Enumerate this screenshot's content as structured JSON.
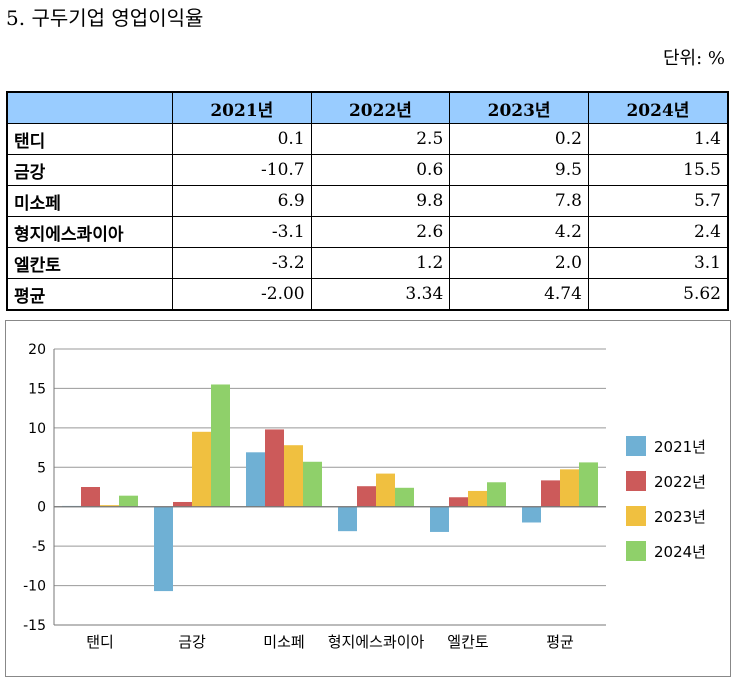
{
  "header": {
    "title": "5. 구두기업 영업이익율",
    "unit": "단위: %"
  },
  "table": {
    "columns": [
      "",
      "2021년",
      "2022년",
      "2023년",
      "2024년"
    ],
    "rows": [
      {
        "name": "탠디",
        "values": [
          "0.1",
          "2.5",
          "0.2",
          "1.4"
        ]
      },
      {
        "name": "금강",
        "values": [
          "-10.7",
          "0.6",
          "9.5",
          "15.5"
        ]
      },
      {
        "name": "미소페",
        "values": [
          "6.9",
          "9.8",
          "7.8",
          "5.7"
        ]
      },
      {
        "name": "형지에스콰이아",
        "values": [
          "-3.1",
          "2.6",
          "4.2",
          "2.4"
        ]
      },
      {
        "name": "엘칸토",
        "values": [
          "-3.2",
          "1.2",
          "2.0",
          "3.1"
        ]
      },
      {
        "name": "평균",
        "values": [
          "-2.00",
          "3.34",
          "4.74",
          "5.62"
        ]
      }
    ]
  },
  "chart_data": {
    "type": "bar",
    "categories": [
      "탠디",
      "금강",
      "미소페",
      "형지에스콰이아",
      "엘칸토",
      "평균"
    ],
    "series": [
      {
        "name": "2021년",
        "color": "#6fb0d4",
        "values": [
          0.1,
          -10.7,
          6.9,
          -3.1,
          -3.2,
          -2.0
        ]
      },
      {
        "name": "2022년",
        "color": "#cc5a5a",
        "values": [
          2.5,
          0.6,
          9.8,
          2.6,
          1.2,
          3.34
        ]
      },
      {
        "name": "2023년",
        "color": "#f0c040",
        "values": [
          0.2,
          9.5,
          7.8,
          4.2,
          2.0,
          4.74
        ]
      },
      {
        "name": "2024년",
        "color": "#8fd06a",
        "values": [
          1.4,
          15.5,
          5.7,
          2.4,
          3.1,
          5.62
        ]
      }
    ],
    "ylim": [
      -15,
      20
    ],
    "yticks": [
      "-15",
      "-10",
      "-5",
      "0",
      "5",
      "10",
      "15",
      "20"
    ],
    "grid": true,
    "legend": "right"
  }
}
